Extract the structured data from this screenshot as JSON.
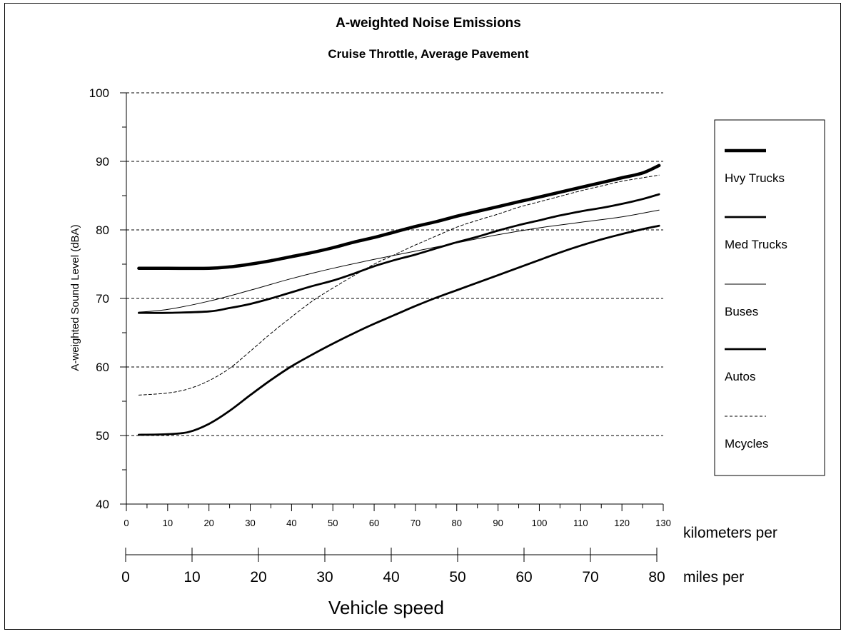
{
  "chart_data": {
    "type": "line",
    "title": "A-weighted Noise Emissions",
    "subtitle": "Cruise Throttle, Average Pavement",
    "ylabel": "A-weighted Sound Level (dBA)",
    "xlabel": "Vehicle speed",
    "ylim": [
      40,
      100
    ],
    "yticks": [
      40,
      50,
      60,
      70,
      80,
      90,
      100
    ],
    "grid": "horizontal dashed",
    "kmh_axis": {
      "label": "kilometers per",
      "range": [
        0,
        130
      ],
      "ticks": [
        0,
        10,
        20,
        30,
        40,
        50,
        60,
        70,
        80,
        90,
        100,
        110,
        120,
        130
      ]
    },
    "mph_axis": {
      "label": "miles per",
      "range": [
        0,
        80
      ],
      "ticks": [
        0,
        10,
        20,
        30,
        40,
        50,
        60,
        70,
        80
      ]
    },
    "legend_position": "right",
    "series": [
      {
        "name": "Hvy Trucks",
        "style": "heavy",
        "x_kmh": [
          3,
          10,
          20,
          25,
          30,
          35,
          40,
          45,
          50,
          55,
          60,
          65,
          70,
          75,
          80,
          85,
          90,
          95,
          100,
          105,
          110,
          115,
          120,
          125,
          129
        ],
        "y": [
          74.4,
          74.4,
          74.4,
          74.6,
          75.0,
          75.5,
          76.1,
          76.7,
          77.4,
          78.2,
          78.9,
          79.7,
          80.5,
          81.2,
          82.0,
          82.7,
          83.4,
          84.1,
          84.8,
          85.5,
          86.2,
          86.9,
          87.6,
          88.3,
          89.4
        ]
      },
      {
        "name": "Med Trucks",
        "style": "medium",
        "x_kmh": [
          3,
          10,
          20,
          25,
          30,
          35,
          40,
          45,
          50,
          55,
          60,
          65,
          70,
          75,
          80,
          85,
          90,
          95,
          100,
          105,
          110,
          115,
          120,
          125,
          129
        ],
        "y": [
          67.9,
          67.9,
          68.1,
          68.6,
          69.2,
          70.0,
          70.9,
          71.8,
          72.6,
          73.6,
          74.7,
          75.6,
          76.4,
          77.3,
          78.2,
          79.0,
          79.9,
          80.7,
          81.4,
          82.1,
          82.7,
          83.2,
          83.8,
          84.5,
          85.2
        ]
      },
      {
        "name": "Buses",
        "style": "thin",
        "x_kmh": [
          3,
          10,
          20,
          30,
          40,
          50,
          60,
          70,
          80,
          90,
          100,
          110,
          120,
          129
        ],
        "y": [
          68.0,
          68.4,
          69.6,
          71.2,
          72.9,
          74.4,
          75.7,
          76.9,
          78.1,
          79.3,
          80.3,
          81.1,
          81.9,
          82.9
        ]
      },
      {
        "name": "Autos",
        "style": "medium",
        "x_kmh": [
          3,
          10,
          15,
          20,
          25,
          30,
          35,
          40,
          45,
          50,
          55,
          60,
          65,
          70,
          75,
          80,
          85,
          90,
          95,
          100,
          105,
          110,
          115,
          120,
          125,
          129
        ],
        "y": [
          50.1,
          50.2,
          50.5,
          51.7,
          53.6,
          55.9,
          58.1,
          60.1,
          61.8,
          63.4,
          64.9,
          66.3,
          67.6,
          68.9,
          70.1,
          71.2,
          72.3,
          73.4,
          74.5,
          75.6,
          76.7,
          77.7,
          78.6,
          79.4,
          80.1,
          80.6
        ]
      },
      {
        "name": "Mcycles",
        "style": "dashed",
        "x_kmh": [
          3,
          10,
          15,
          20,
          25,
          30,
          35,
          40,
          45,
          50,
          55,
          60,
          65,
          70,
          75,
          80,
          85,
          90,
          95,
          100,
          105,
          110,
          115,
          120,
          125,
          129
        ],
        "y": [
          55.9,
          56.2,
          56.8,
          58.0,
          59.8,
          62.3,
          64.9,
          67.3,
          69.6,
          71.5,
          73.3,
          75.0,
          76.4,
          77.8,
          79.1,
          80.4,
          81.4,
          82.3,
          83.3,
          84.1,
          84.9,
          85.7,
          86.4,
          87.1,
          87.6,
          88.0
        ]
      }
    ]
  }
}
